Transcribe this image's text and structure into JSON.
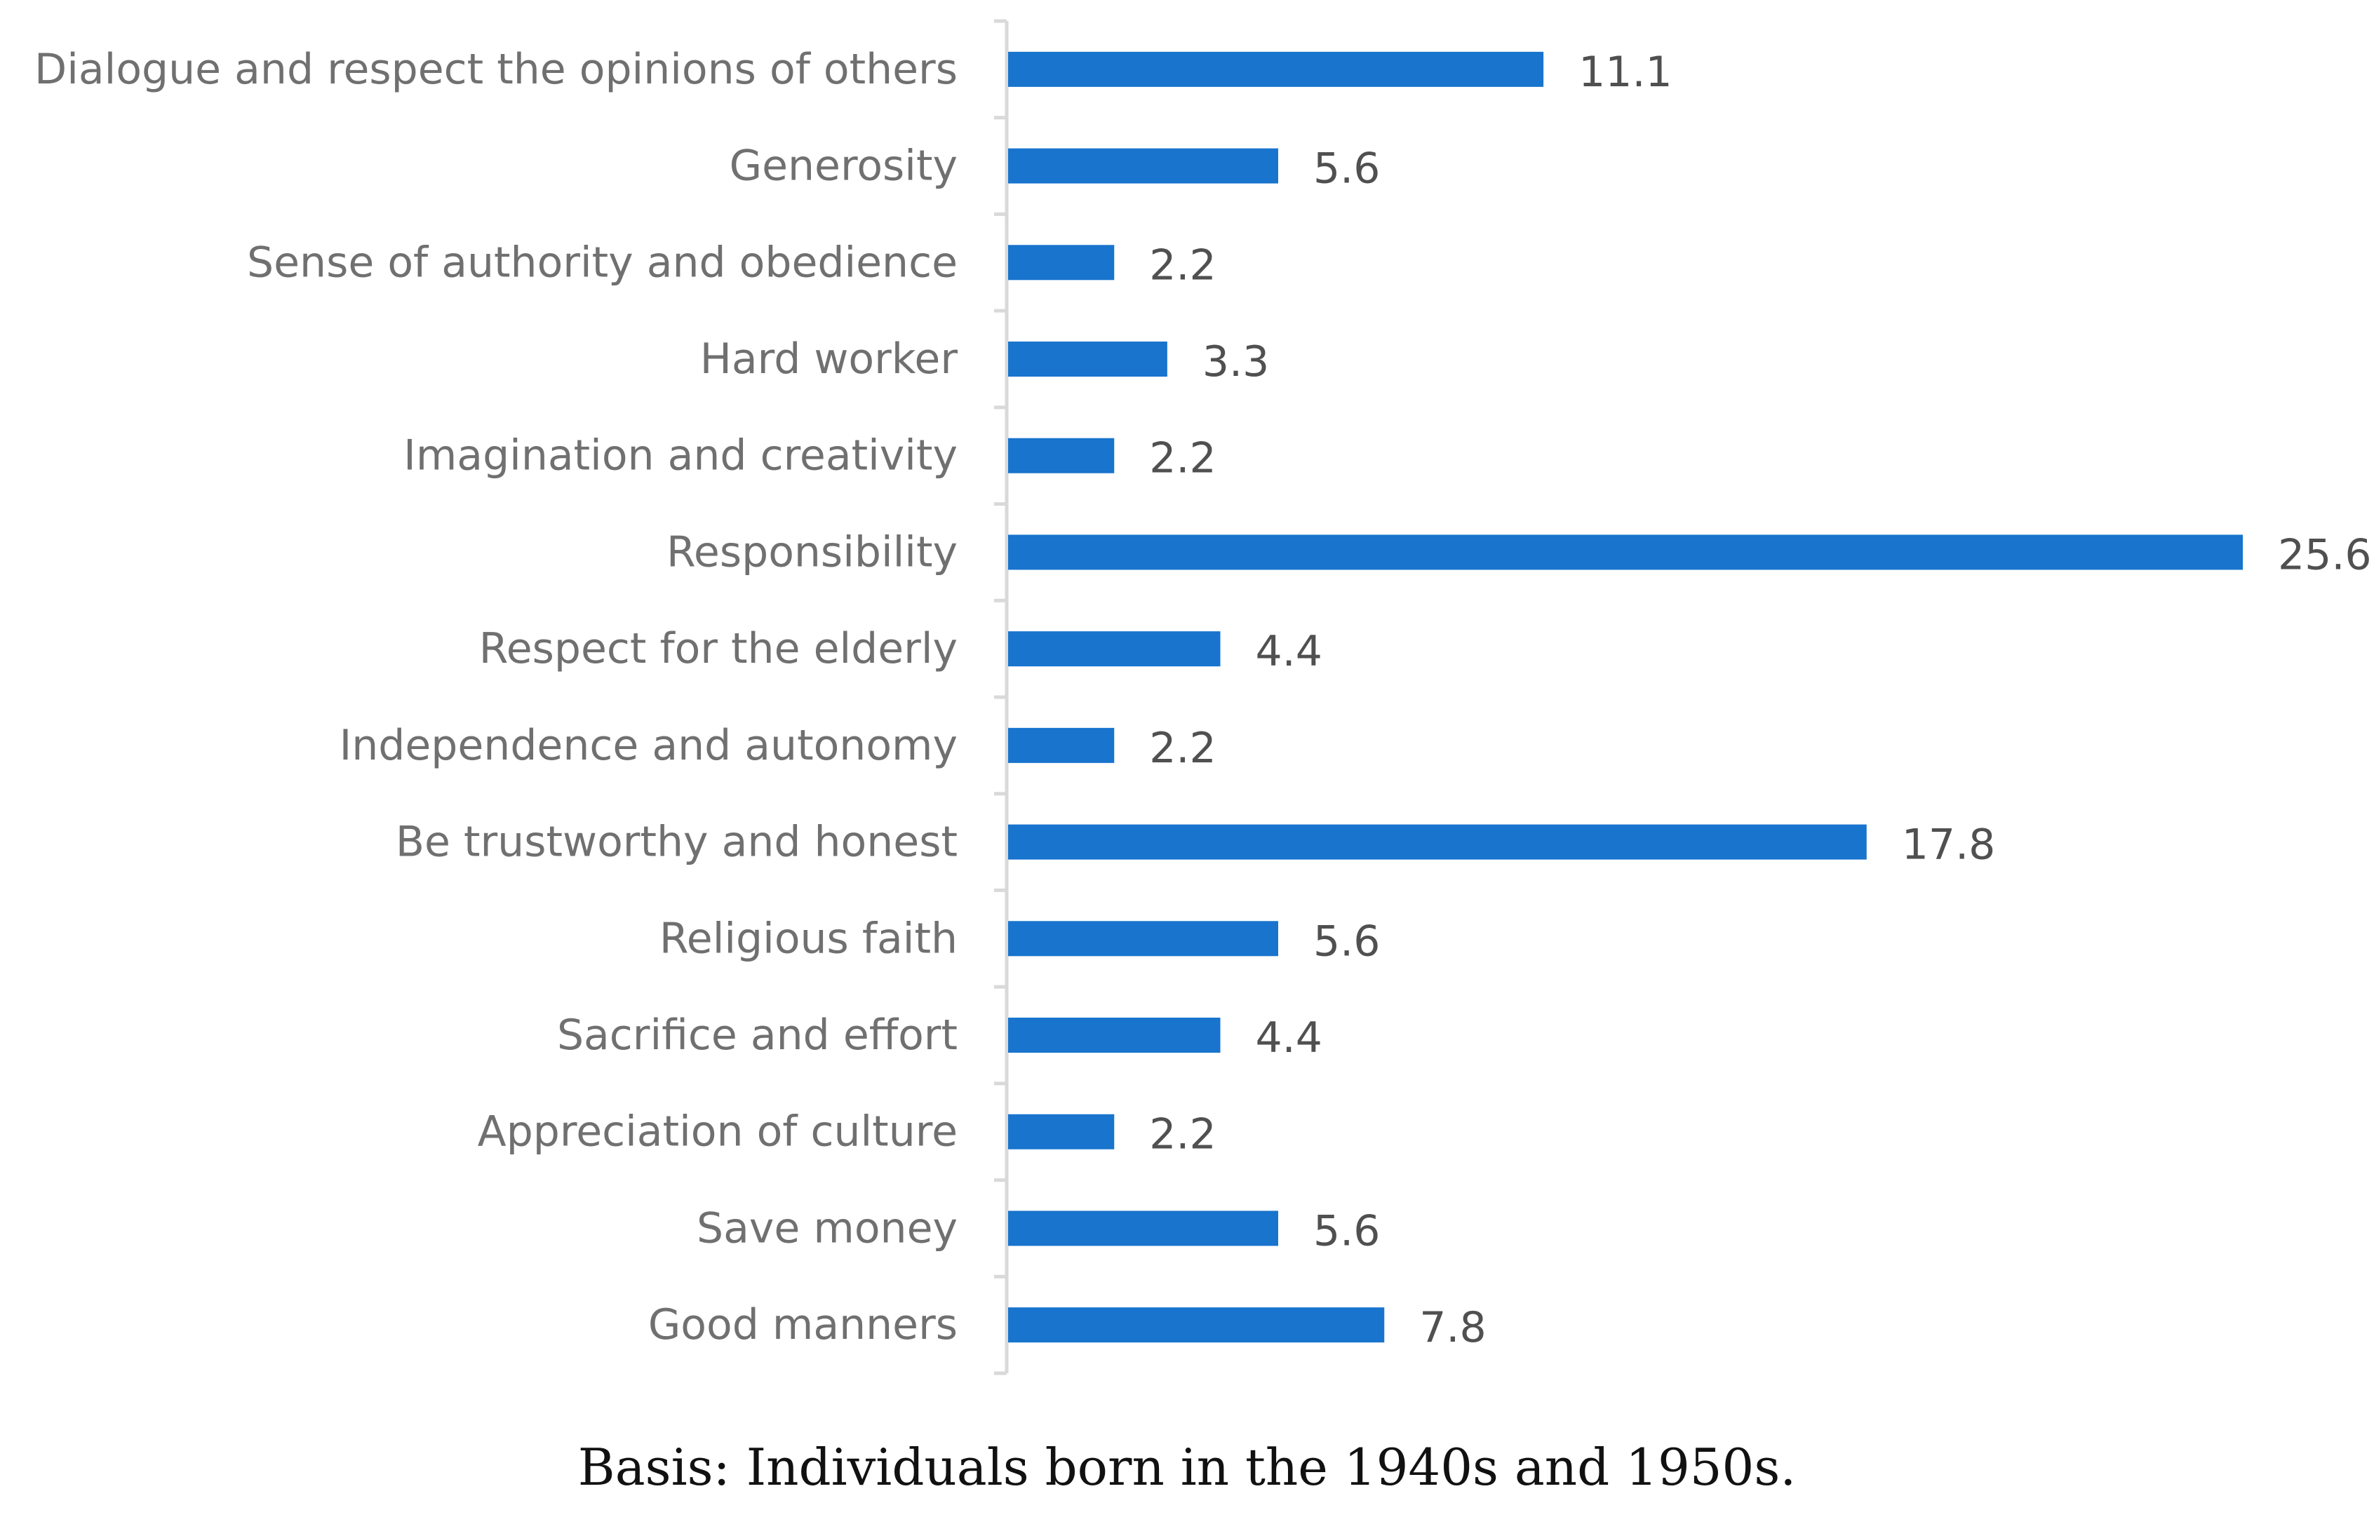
{
  "chart_data": {
    "type": "bar",
    "orientation": "horizontal",
    "title": "",
    "xlabel": "",
    "ylabel": "",
    "xlim": [
      0,
      25.6
    ],
    "grid": false,
    "legend": "none",
    "categories": [
      "Dialogue and respect the opinions of others",
      "Generosity",
      "Sense of authority and obedience",
      "Hard worker",
      "Imagination and creativity",
      "Responsibility",
      "Respect for the elderly",
      "Independence and autonomy",
      "Be trustworthy and honest",
      "Religious faith",
      "Sacrifice and effort",
      "Appreciation of culture",
      "Save money",
      "Good manners"
    ],
    "values": [
      11.1,
      5.6,
      2.2,
      3.3,
      2.2,
      25.6,
      4.4,
      2.2,
      17.8,
      5.6,
      4.4,
      2.2,
      5.6,
      7.8
    ],
    "value_labels": [
      "11.1",
      "5.6",
      "2.2",
      "3.3",
      "2.2",
      "25.6",
      "4.4",
      "2.2",
      "17.8",
      "5.6",
      "4.4",
      "2.2",
      "5.6",
      "7.8"
    ]
  },
  "caption": "Basis: Individuals born in the 1940s and 1950s.",
  "colors": {
    "bar": "#1874CD",
    "axis": "#D9D9D9"
  }
}
